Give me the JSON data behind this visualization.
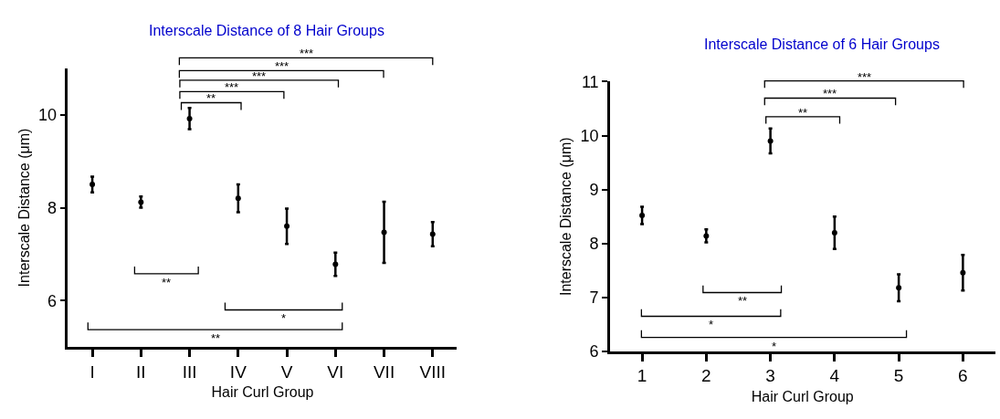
{
  "chart_data": [
    {
      "type": "scatter",
      "title": "Interscale Distance of 8 Hair Groups",
      "xlabel": "Hair Curl Group",
      "ylabel": "Interscale Distance (μm)",
      "categories": [
        "I",
        "II",
        "III",
        "IV",
        "V",
        "VI",
        "VII",
        "VIII"
      ],
      "ylim": [
        5,
        11
      ],
      "yticks": [
        6,
        8,
        10
      ],
      "marker": "circle",
      "series": [
        {
          "color": "#000000",
          "values": [
            8.5,
            8.12,
            9.92,
            8.2,
            7.6,
            6.78,
            7.47,
            7.43
          ],
          "errors": [
            0.17,
            0.12,
            0.23,
            0.3,
            0.38,
            0.25,
            0.66,
            0.26
          ]
        }
      ],
      "annotations": [
        "***",
        "***",
        "***",
        "***",
        "**",
        "**",
        "*",
        "**"
      ]
    },
    {
      "type": "scatter",
      "title": "Interscale Distance of 6 Hair Groups",
      "xlabel": "Hair Curl Group",
      "ylabel": "Interscale Distance (μm)",
      "categories": [
        "1",
        "2",
        "3",
        "4",
        "5",
        "6"
      ],
      "ylim": [
        6,
        11
      ],
      "yticks": [
        6,
        7,
        8,
        9,
        10,
        11
      ],
      "marker": "circle",
      "series": [
        {
          "color": "#000000",
          "values": [
            8.52,
            8.14,
            9.9,
            8.2,
            7.18,
            7.46
          ],
          "errors": [
            0.16,
            0.12,
            0.23,
            0.3,
            0.25,
            0.33
          ]
        }
      ],
      "annotations": [
        "***",
        "***",
        "**",
        "**",
        "*",
        "*"
      ]
    }
  ]
}
